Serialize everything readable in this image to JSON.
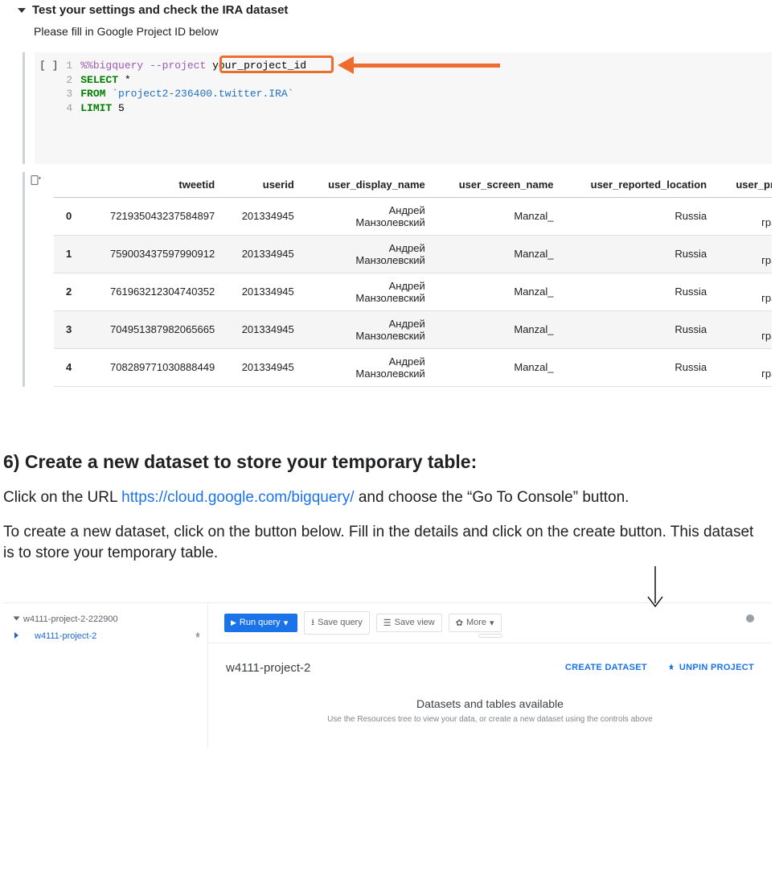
{
  "nb": {
    "title": "Test your settings and check the IRA dataset",
    "subtitle": "Please fill in Google Project ID below",
    "prompt": "[ ]",
    "line_numbers": [
      "1",
      "2",
      "3",
      "4"
    ],
    "code": {
      "l1a": "%%bigquery ",
      "l1b": "--project ",
      "l1c": "your_project_id",
      "l2a": "SELECT",
      "l2b": " *",
      "l3a": "FROM",
      "l3b": " `project2-236400.twitter.IRA`",
      "l4a": "LIMIT",
      "l4b": " 5"
    },
    "highlight_color": "#ef6c2f"
  },
  "table": {
    "columns": [
      "",
      "tweetid",
      "userid",
      "user_display_name",
      "user_screen_name",
      "user_reported_location",
      "user_profile_"
    ],
    "rows": [
      [
        "0",
        "721935043237584897",
        "201334945",
        "Андрей\nМанзолевский",
        "Manzal_",
        "Russia",
        "Блог\nграждан"
      ],
      [
        "1",
        "759003437597990912",
        "201334945",
        "Андрей\nМанзолевский",
        "Manzal_",
        "Russia",
        "Блог\nграждан"
      ],
      [
        "2",
        "761963212304740352",
        "201334945",
        "Андрей\nМанзолевский",
        "Manzal_",
        "Russia",
        "Блог\nграждан"
      ],
      [
        "3",
        "704951387982065665",
        "201334945",
        "Андрей\nМанзолевский",
        "Manzal_",
        "Russia",
        "Блог\nграждан"
      ],
      [
        "4",
        "708289771030888449",
        "201334945",
        "Андрей\nМанзолевский",
        "Manzal_",
        "Russia",
        "Блог\nграждан"
      ]
    ]
  },
  "article": {
    "heading": "6) Create a new dataset to store your temporary table:",
    "p1a": "Click on the URL ",
    "link": "https://cloud.google.com/bigquery/",
    "p1b": " and choose the “Go To Console” button.",
    "p2": "To create a new dataset, click on the button below. Fill in the details and click on the create button. This dataset is to store your temporary table."
  },
  "bq": {
    "side_parent": "w4111-project-2-222900",
    "side_child": "w4111-project-2",
    "run": "Run query",
    "save_query": "Save query",
    "save_view": "Save view",
    "more": "More",
    "project": "w4111-project-2",
    "create": "CREATE DATASET",
    "unpin": "UNPIN PROJECT",
    "center_title": "Datasets and tables available",
    "center_sub": "Use the Resources tree to view your data, or create a new dataset using the controls above"
  },
  "colors": {
    "link": "#1a73e8",
    "highlight": "#ef6c2f",
    "kw": "#008000",
    "str": "#1e6fbf"
  }
}
